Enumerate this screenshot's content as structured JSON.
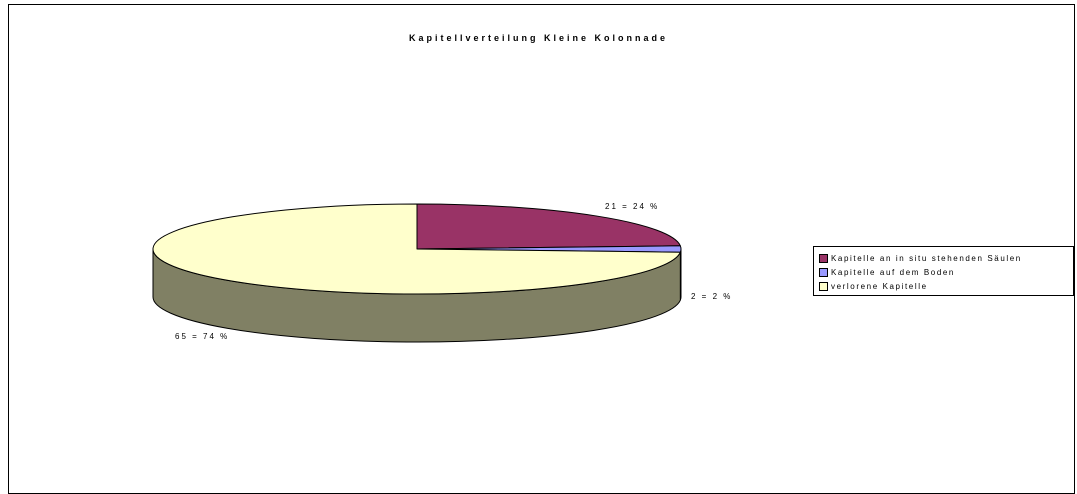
{
  "chart_data": {
    "type": "pie",
    "title": "Kapitellverteilung Kleine Kolonnade",
    "three_d": true,
    "categories": [
      "Kapitelle an in situ stehenden Säulen",
      "Kapitelle auf dem Boden",
      "verlorene Kapitelle"
    ],
    "values": [
      21,
      2,
      65
    ],
    "percentages": [
      24,
      2,
      74
    ],
    "data_labels": [
      "21 = 24 %",
      "2 = 2 %",
      "65 = 74 %"
    ],
    "colors": [
      "#993366",
      "#9999ff",
      "#ffffcc"
    ],
    "side_color": "#808064",
    "legend_position": "right"
  }
}
